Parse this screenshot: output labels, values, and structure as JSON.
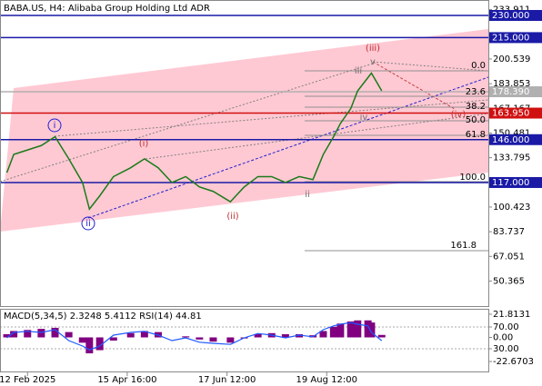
{
  "chart_data": [
    {
      "type": "line",
      "title": "BABA.US, H4:  Alibaba Group Holding Ltd ADR",
      "x": [
        1,
        2,
        4,
        6,
        8,
        10,
        12,
        13,
        14.5,
        16.5,
        19,
        21,
        23,
        25,
        27,
        29,
        31,
        33.5,
        35.5,
        37.5,
        39.5,
        41.5,
        43.5,
        45.5,
        47,
        48.5,
        49.5,
        51,
        52,
        53.5,
        54,
        55.5
      ],
      "values": [
        123.7,
        136,
        139,
        142,
        148,
        133,
        117,
        99,
        108,
        121,
        127,
        133,
        127,
        117,
        121,
        114,
        111,
        104,
        114,
        121,
        121,
        117,
        121,
        119,
        136,
        148,
        157,
        167,
        179,
        188,
        191,
        179
      ],
      "color": "#1a7a1a",
      "xlim": [
        0,
        71
      ],
      "ylim": [
        33.44,
        240.44
      ],
      "yticks": [
        233.911,
        200.539,
        183.853,
        167.167,
        150.481,
        133.795,
        100.423,
        83.737,
        67.051,
        50.365
      ],
      "xticks": [
        {
          "value": 4,
          "label": "12 Feb 2025"
        },
        {
          "value": 18.5,
          "label": "15 Apr 16:00"
        },
        {
          "value": 33,
          "label": "17 Jun 12:00"
        },
        {
          "value": 47.5,
          "label": "19 Aug 12:00"
        }
      ],
      "levels": [
        {
          "value": 230,
          "label": "230.000",
          "color": "#1a1aa6"
        },
        {
          "value": 215,
          "label": "215.000",
          "color": "#1a1aa6"
        },
        {
          "value": 178.39,
          "label": "178.390",
          "color": "#b0b0b0"
        },
        {
          "value": 163.95,
          "label": "163.950",
          "color": "#d01010"
        },
        {
          "value": 146,
          "label": "146.000",
          "color": "#1a1aa6"
        },
        {
          "value": 117,
          "label": "117.000",
          "color": "#1a1aa6"
        }
      ],
      "annotations": [
        "i",
        "ii",
        "(i)",
        "(ii)",
        "(iii)",
        "(iv)",
        "iii",
        "iv",
        "v",
        "ii",
        "0.0",
        "23.6",
        "38.2",
        "50.0",
        "61.8",
        "100.0",
        "161.8"
      ]
    },
    {
      "type": "bar",
      "title": "MACD(5,34,5) 2.3248 5.4112 RSI(14) 44.81",
      "x": [
        1,
        2,
        4,
        6,
        8,
        10,
        12,
        13,
        14.5,
        16.5,
        19,
        21,
        23,
        25,
        27,
        29,
        31,
        33.5,
        35.5,
        37.5,
        39.5,
        41.5,
        43.5,
        45.5,
        47,
        48.5,
        49.5,
        51,
        52,
        53.5,
        54,
        55.5
      ],
      "series": [
        {
          "color": "#800080",
          "values": [
            3,
            6,
            7,
            8,
            9,
            5,
            -5,
            -15,
            -12,
            -3,
            4,
            6,
            5,
            0,
            1,
            -2,
            -4,
            -5,
            -1,
            3,
            4,
            3,
            3,
            2,
            6,
            10,
            13,
            15,
            16,
            16,
            14,
            2.3248
          ]
        },
        {
          "color": "#1e5aff",
          "axis": "y2",
          "values": [
            50,
            60,
            62,
            60,
            65,
            45,
            35,
            28,
            35,
            55,
            60,
            62,
            55,
            45,
            50,
            42,
            40,
            38,
            50,
            58,
            55,
            50,
            55,
            52,
            65,
            72,
            75,
            78,
            75,
            72,
            60,
            44.81
          ]
        }
      ],
      "xlim": [
        0,
        71
      ],
      "ylim": [
        -32.9,
        26.9
      ],
      "yticks": [
        21.8131,
        {
          "value": 0,
          "label": "0.00"
        },
        -22.6703
      ],
      "y2lim": [
        -13.3,
        103.3
      ],
      "y2ticks": [
        {
          "value": 70,
          "label": "70.00"
        },
        {
          "value": 30,
          "label": "30.00"
        }
      ]
    }
  ]
}
